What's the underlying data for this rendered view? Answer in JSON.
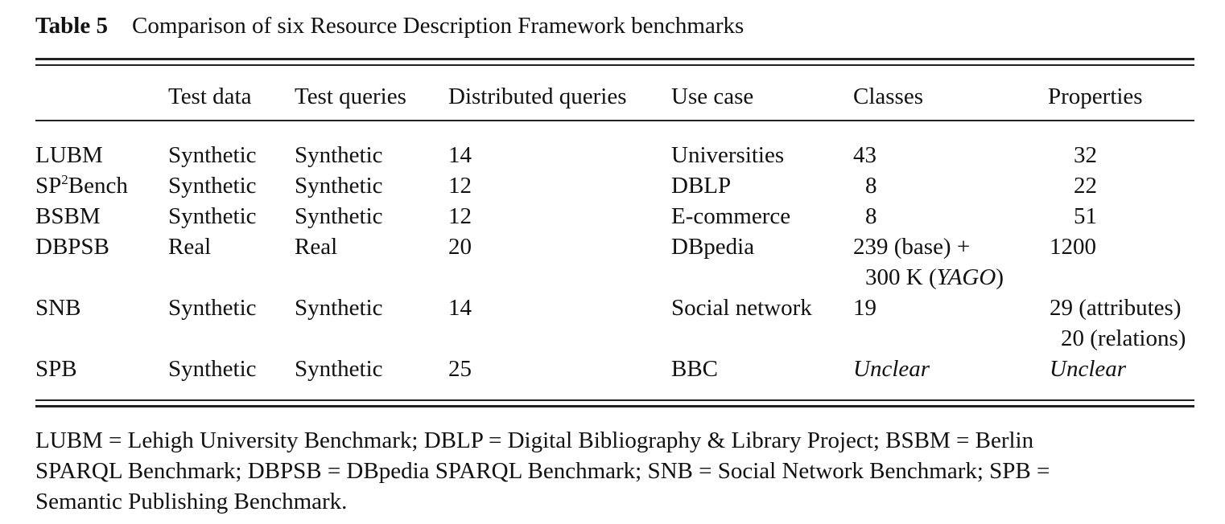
{
  "caption": {
    "label": "Table 5",
    "text": "Comparison of six Resource Description Framework benchmarks"
  },
  "table": {
    "headers": [
      "",
      "Test data",
      "Test queries",
      "Distributed queries",
      "Use case",
      "Classes",
      "Properties"
    ],
    "rows": [
      {
        "name": "LUBM",
        "test_data": "Synthetic",
        "test_queries": "Synthetic",
        "distributed_queries": "14",
        "use_case": "Universities",
        "classes": "43",
        "properties": "32"
      },
      {
        "name_prefix": "SP",
        "name_sup": "2",
        "name_suffix": "Bench",
        "test_data": "Synthetic",
        "test_queries": "Synthetic",
        "distributed_queries": "12",
        "use_case": "DBLP",
        "classes": "8",
        "properties": "22"
      },
      {
        "name": "BSBM",
        "test_data": "Synthetic",
        "test_queries": "Synthetic",
        "distributed_queries": "12",
        "use_case": "E-commerce",
        "classes": "8",
        "properties": "51"
      },
      {
        "name": "DBPSB",
        "test_data": "Real",
        "test_queries": "Real",
        "distributed_queries": "20",
        "use_case": "DBpedia",
        "classes_line1": "239 (base) +",
        "classes_line2_prefix": "300 K (",
        "classes_line2_italic": "YAGO",
        "classes_line2_suffix": ")",
        "properties": "1200"
      },
      {
        "name": "SNB",
        "test_data": "Synthetic",
        "test_queries": "Synthetic",
        "distributed_queries": "14",
        "use_case": "Social network",
        "classes": "19",
        "properties_line1": "29 (attributes)",
        "properties_line2": "20 (relations)"
      },
      {
        "name": "SPB",
        "test_data": "Synthetic",
        "test_queries": "Synthetic",
        "distributed_queries": "25",
        "use_case": "BBC",
        "classes": "Unclear",
        "properties": "Unclear"
      }
    ]
  },
  "footnote": {
    "line1": "LUBM = Lehigh University Benchmark; DBLP = Digital Bibliography & Library Project; BSBM = Berlin",
    "line2": "SPARQL Benchmark; DBPSB = DBpedia SPARQL Benchmark; SNB = Social Network Benchmark; SPB =",
    "line3": "Semantic Publishing Benchmark."
  }
}
